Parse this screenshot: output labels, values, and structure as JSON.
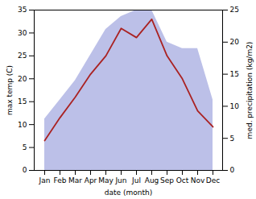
{
  "chart_data": {
    "type": "line",
    "categories": [
      "Jan",
      "Feb",
      "Mar",
      "Apr",
      "May",
      "Jun",
      "Jul",
      "Aug",
      "Sep",
      "Oct",
      "Nov",
      "Dec"
    ],
    "xlabel": "date (month)",
    "ylabel": "max temp (C)",
    "y2label": "med. precipitation (kg/m2)",
    "ylim": [
      0,
      35
    ],
    "yticks": [
      0,
      5,
      10,
      15,
      20,
      25,
      30,
      35
    ],
    "y2lim": [
      0,
      25
    ],
    "y2ticks": [
      0,
      5,
      10,
      15,
      20,
      25
    ],
    "series": [
      {
        "type": "area",
        "axis": "y2",
        "color": "#bcc0e8",
        "values": [
          8,
          11,
          14,
          18,
          22,
          24,
          25,
          25,
          20,
          19,
          19,
          11
        ]
      },
      {
        "type": "line",
        "color": "#aa2222",
        "values": [
          6.5,
          11.5,
          16.0,
          21.0,
          25.0,
          31.0,
          29.0,
          33.0,
          25.0,
          20.0,
          13.0,
          9.5
        ]
      }
    ]
  }
}
